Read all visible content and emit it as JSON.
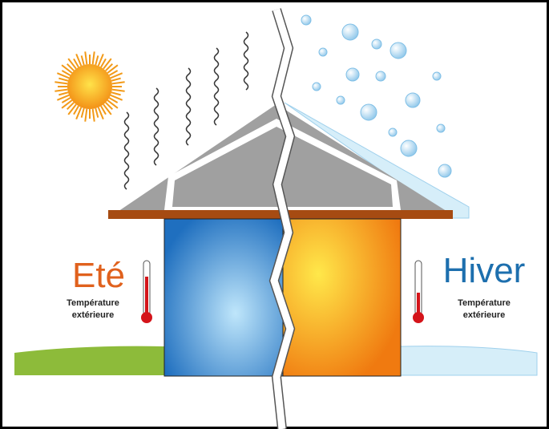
{
  "summer": {
    "title": "Eté",
    "label": [
      "Température",
      "extérieure"
    ]
  },
  "winter": {
    "title": "Hiver",
    "label": [
      "Température",
      "extérieure"
    ]
  }
}
